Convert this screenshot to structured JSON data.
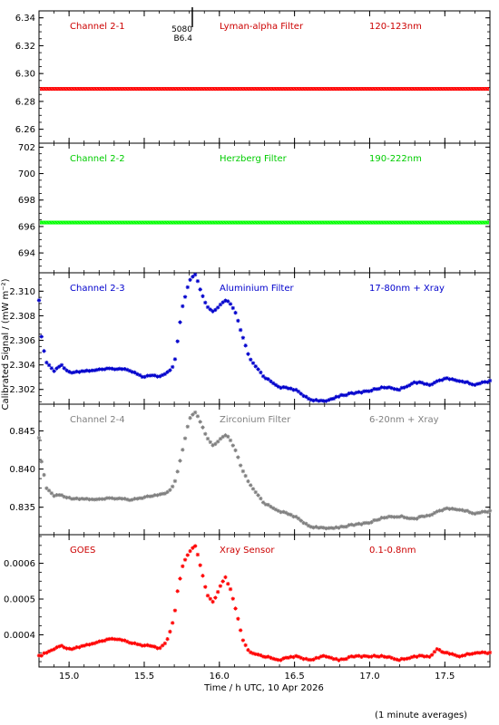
{
  "chart_data": {
    "type": "scatter",
    "xlabel": "Time / h UTC, 10 Apr 2026",
    "ylabel": "Calibrated Signal / (mW m⁻²)",
    "footnote": "(1 minute averages)",
    "xlim": [
      14.8,
      17.8
    ],
    "xticks": [
      "15.0",
      "15.5",
      "16.0",
      "16.5",
      "17.0",
      "17.5"
    ],
    "xtick_values": [
      15.0,
      15.5,
      16.0,
      16.5,
      17.0,
      17.5
    ],
    "panels": [
      {
        "id": "ch1",
        "channel": "Channel 2-1",
        "filter": "Lyman-alpha Filter",
        "band": "120-123nm",
        "color": "#ff0000",
        "label_color": "#cc0000",
        "ylim": [
          6.25,
          6.345
        ],
        "yticks": [
          "6.26",
          "6.28",
          "6.30",
          "6.32",
          "6.34"
        ],
        "ytick_values": [
          6.26,
          6.28,
          6.3,
          6.32,
          6.34
        ],
        "annotation": {
          "lines": [
            "5080",
            "B6.4"
          ],
          "x": 15.82
        },
        "series": [
          {
            "x": [
              14.8,
              17.8
            ],
            "y": [
              6.289,
              6.289
            ],
            "constant": true
          }
        ]
      },
      {
        "id": "ch2",
        "channel": "Channel 2-2",
        "filter": "Herzberg Filter",
        "band": "190-222nm",
        "color": "#00ff00",
        "label_color": "#00cc00",
        "ylim": [
          692.5,
          702.3
        ],
        "yticks": [
          "694",
          "696",
          "698",
          "700",
          "702"
        ],
        "ytick_values": [
          694,
          696,
          698,
          700,
          702
        ],
        "series": [
          {
            "x": [
              14.8,
              17.8
            ],
            "y": [
              696.3,
              696.3
            ],
            "constant": true
          }
        ]
      },
      {
        "id": "ch3",
        "channel": "Channel 2-3",
        "filter": "Aluminium Filter",
        "band": "17-80nm + Xray",
        "color": "#0000cc",
        "label_color": "#0000cc",
        "ylim": [
          2.3008,
          2.3115
        ],
        "yticks": [
          "2.302",
          "2.304",
          "2.306",
          "2.308",
          "2.310"
        ],
        "ytick_values": [
          2.302,
          2.304,
          2.306,
          2.308,
          2.31
        ],
        "profile": {
          "x": [
            14.8,
            14.82,
            14.85,
            14.9,
            14.95,
            15.0,
            15.1,
            15.2,
            15.3,
            15.4,
            15.5,
            15.55,
            15.6,
            15.65,
            15.7,
            15.75,
            15.8,
            15.84,
            15.88,
            15.92,
            15.96,
            16.0,
            16.05,
            16.1,
            16.15,
            16.2,
            16.3,
            16.4,
            16.5,
            16.6,
            16.7,
            16.8,
            17.0,
            17.1,
            17.2,
            17.3,
            17.4,
            17.5,
            17.6,
            17.7,
            17.8
          ],
          "y": [
            2.3092,
            2.3058,
            2.3042,
            2.3035,
            2.304,
            2.3034,
            2.3035,
            2.3036,
            2.3037,
            2.3036,
            2.303,
            2.3032,
            2.303,
            2.3033,
            2.304,
            2.3085,
            2.3108,
            2.3114,
            2.3098,
            2.3087,
            2.3083,
            2.3088,
            2.3093,
            2.3085,
            2.3065,
            2.3045,
            2.303,
            2.3022,
            2.302,
            2.3012,
            2.301,
            2.3015,
            2.3019,
            2.3022,
            2.302,
            2.3026,
            2.3024,
            2.3029,
            2.3027,
            2.3024,
            2.3027
          ]
        }
      },
      {
        "id": "ch4",
        "channel": "Channel 2-4",
        "filter": "Zirconium Filter",
        "band": "6-20nm + Xray",
        "color": "#808080",
        "label_color": "#808080",
        "ylim": [
          0.8314,
          0.8485
        ],
        "yticks": [
          "0.835",
          "0.840",
          "0.845"
        ],
        "ytick_values": [
          0.835,
          0.84,
          0.845
        ],
        "profile": {
          "x": [
            14.8,
            14.82,
            14.85,
            14.9,
            14.95,
            15.0,
            15.1,
            15.2,
            15.3,
            15.4,
            15.5,
            15.55,
            15.6,
            15.65,
            15.7,
            15.75,
            15.8,
            15.84,
            15.88,
            15.92,
            15.96,
            16.0,
            16.05,
            16.1,
            16.15,
            16.2,
            16.3,
            16.4,
            16.5,
            16.6,
            16.7,
            16.8,
            17.0,
            17.1,
            17.2,
            17.3,
            17.4,
            17.5,
            17.6,
            17.7,
            17.8
          ],
          "y": [
            0.844,
            0.8405,
            0.8375,
            0.8365,
            0.8366,
            0.8362,
            0.8361,
            0.836,
            0.8362,
            0.836,
            0.8363,
            0.8365,
            0.8366,
            0.8368,
            0.838,
            0.842,
            0.8465,
            0.8475,
            0.8458,
            0.844,
            0.843,
            0.8438,
            0.8445,
            0.8428,
            0.84,
            0.838,
            0.8355,
            0.8345,
            0.8338,
            0.8325,
            0.8322,
            0.8324,
            0.833,
            0.8337,
            0.8338,
            0.8335,
            0.834,
            0.8348,
            0.8347,
            0.8342,
            0.8345
          ]
        }
      },
      {
        "id": "goes",
        "channel": "GOES",
        "filter": "Xray Sensor",
        "band": "0.1-0.8nm",
        "color": "#ff0000",
        "label_color": "#cc0000",
        "ylim": [
          0.00031,
          0.00068
        ],
        "yticks": [
          "0.0004",
          "0.0005",
          "0.0006"
        ],
        "ytick_values": [
          0.0004,
          0.0005,
          0.0006
        ],
        "profile": {
          "x": [
            14.8,
            14.85,
            14.9,
            14.95,
            15.0,
            15.1,
            15.2,
            15.3,
            15.4,
            15.5,
            15.55,
            15.6,
            15.65,
            15.7,
            15.72,
            15.76,
            15.8,
            15.84,
            15.88,
            15.92,
            15.96,
            16.0,
            16.04,
            16.08,
            16.12,
            16.16,
            16.2,
            16.3,
            16.4,
            16.5,
            16.6,
            16.7,
            16.8,
            16.9,
            17.0,
            17.1,
            17.2,
            17.3,
            17.4,
            17.45,
            17.5,
            17.6,
            17.7,
            17.8
          ],
          "y": [
            0.00034,
            0.00035,
            0.00036,
            0.00037,
            0.00036,
            0.00037,
            0.00038,
            0.00039,
            0.00038,
            0.00037,
            0.00037,
            0.00036,
            0.00038,
            0.00045,
            0.00052,
            0.0006,
            0.00063,
            0.00065,
            0.00058,
            0.00051,
            0.00049,
            0.00053,
            0.00056,
            0.00052,
            0.00045,
            0.00038,
            0.00035,
            0.00034,
            0.00033,
            0.00034,
            0.00033,
            0.00034,
            0.00033,
            0.00034,
            0.00034,
            0.00034,
            0.00033,
            0.00034,
            0.00034,
            0.00036,
            0.00035,
            0.00034,
            0.00035,
            0.00035
          ]
        }
      }
    ]
  }
}
